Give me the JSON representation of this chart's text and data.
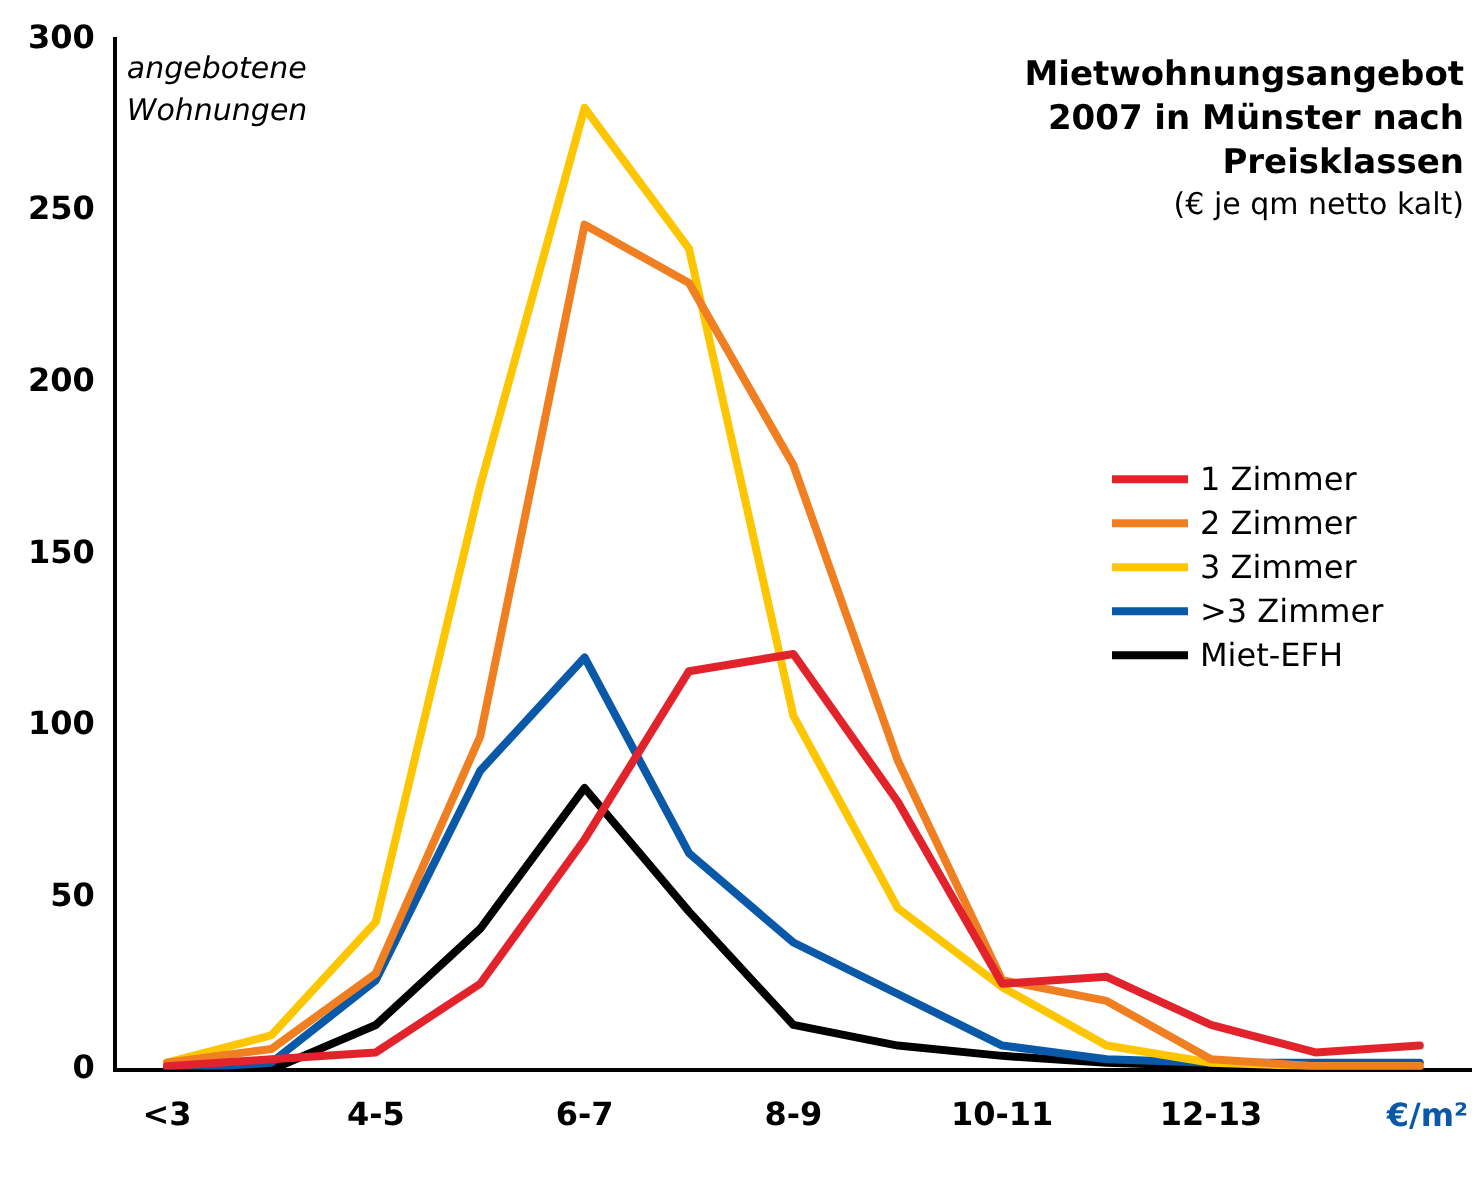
{
  "chart_data": {
    "type": "line",
    "title": "Mietwohnungsangebot 2007 in Münster nach Preisklassen",
    "subtitle": "(€ je qm netto kalt)",
    "ylabel": "angebotene Wohnungen",
    "xlabel": "€/m²",
    "categories": [
      "<3",
      null,
      "4-5",
      null,
      "6-7",
      null,
      "8-9",
      null,
      "10-11",
      null,
      "12-13",
      null,
      null
    ],
    "series": [
      {
        "name": "1 Zimmer",
        "color": "#e3232c",
        "values": [
          1,
          3,
          5,
          25,
          67,
          116,
          121,
          78,
          25,
          27,
          13,
          5,
          7
        ]
      },
      {
        "name": "2 Zimmer",
        "color": "#f07f22",
        "values": [
          2,
          6,
          28,
          97,
          246,
          229,
          176,
          90,
          26,
          20,
          3,
          1,
          1
        ]
      },
      {
        "name": "3 Zimmer",
        "color": "#fdc600",
        "values": [
          2,
          10,
          43,
          170,
          280,
          239,
          103,
          47,
          24,
          7,
          2,
          1,
          1
        ]
      },
      {
        "name": ">3 Zimmer",
        "color": "#0a58a8",
        "values": [
          0,
          2,
          26,
          87,
          120,
          63,
          37,
          22,
          7,
          3,
          2,
          null,
          2
        ]
      },
      {
        "name": "Miet-EFH",
        "color": "#000000",
        "values": [
          0,
          0,
          13,
          41,
          82,
          46,
          13,
          7,
          4,
          2,
          1,
          0,
          0
        ]
      }
    ],
    "ylim": [
      0,
      300
    ],
    "yticks": [
      0,
      50,
      100,
      150,
      200,
      250,
      300
    ],
    "grid": false,
    "legend": "right",
    "marker": "none",
    "line_style": "solid"
  }
}
